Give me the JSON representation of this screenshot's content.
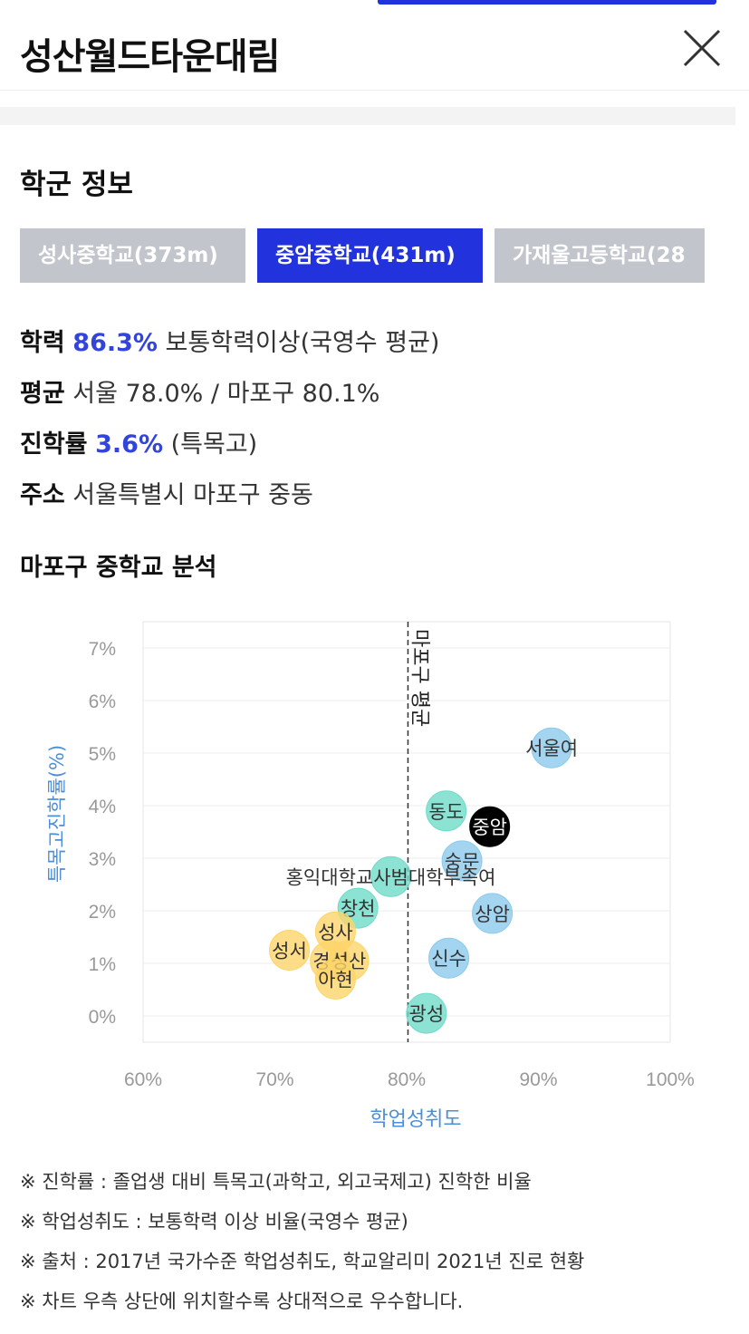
{
  "header": {
    "title": "성산월드타운대림",
    "close_icon": "close-icon"
  },
  "school_section": {
    "title": "학군 정보",
    "tabs": [
      {
        "label": "성사중학교(373m)",
        "active": false
      },
      {
        "label": "중암중학교(431m)",
        "active": true
      },
      {
        "label": "가재울고등학교(28",
        "active": false
      }
    ],
    "info": {
      "achievement_label": "학력",
      "achievement_value": "86.3%",
      "achievement_desc": "보통학력이상(국영수 평균)",
      "average_label": "평균",
      "average_value": "서울 78.0% / 마포구 80.1%",
      "advance_label": "진학률",
      "advance_value": "3.6%",
      "advance_desc": "(특목고)",
      "address_label": "주소",
      "address_value": "서울특별시 마포구 중동"
    }
  },
  "analysis": {
    "title": "마포구 중학교 분석"
  },
  "chart_data": {
    "type": "scatter",
    "xlabel": "학업성취도",
    "ylabel": "특목고진학률(%)",
    "xlim": [
      60,
      100
    ],
    "ylim": [
      -0.5,
      7.5
    ],
    "x_ticks": [
      "60%",
      "70%",
      "80%",
      "90%",
      "100%"
    ],
    "x_tick_values": [
      60,
      70,
      80,
      90,
      100
    ],
    "y_ticks": [
      "0%",
      "1%",
      "2%",
      "3%",
      "4%",
      "5%",
      "6%",
      "7%"
    ],
    "y_tick_values": [
      0,
      1,
      2,
      3,
      4,
      5,
      6,
      7
    ],
    "average_line": {
      "x": 80.1,
      "label": "마포구 평균"
    },
    "colors": {
      "yellow": "#fcd56a",
      "teal": "#6fdcc8",
      "blue": "#8ccaee",
      "black": "#000000"
    },
    "points": [
      {
        "name": "서울여",
        "x": 91.0,
        "y": 5.1,
        "color": "blue"
      },
      {
        "name": "동도",
        "x": 83.0,
        "y": 3.9,
        "color": "teal"
      },
      {
        "name": "중암",
        "x": 86.3,
        "y": 3.6,
        "color": "black"
      },
      {
        "name": "숭문",
        "x": 84.2,
        "y": 2.95,
        "color": "blue"
      },
      {
        "name": "홍익대학교사범대학부속여",
        "x": 78.8,
        "y": 2.65,
        "color": "teal"
      },
      {
        "name": "상암",
        "x": 86.5,
        "y": 1.95,
        "color": "blue"
      },
      {
        "name": "창천",
        "x": 76.3,
        "y": 2.05,
        "color": "teal"
      },
      {
        "name": "신수",
        "x": 83.2,
        "y": 1.1,
        "color": "blue"
      },
      {
        "name": "성사",
        "x": 74.6,
        "y": 1.6,
        "color": "yellow"
      },
      {
        "name": "성서",
        "x": 71.1,
        "y": 1.25,
        "color": "yellow"
      },
      {
        "name": "경성",
        "x": 74.2,
        "y": 1.05,
        "color": "yellow"
      },
      {
        "name": "성산",
        "x": 75.6,
        "y": 1.05,
        "color": "yellow"
      },
      {
        "name": "아현",
        "x": 74.6,
        "y": 0.7,
        "color": "yellow"
      },
      {
        "name": "광성",
        "x": 81.5,
        "y": 0.05,
        "color": "teal"
      }
    ]
  },
  "notes": [
    "※ 진학률 : 졸업생 대비 특목고(과학고, 외고국제고) 진학한 비율",
    "※ 학업성취도 : 보통학력 이상 비율(국영수 평균)",
    "※ 출처 : 2017년 국가수준 학업성취도, 학교알리미 2021년 진로 현황",
    "※ 차트 우측 상단에 위치할수록 상대적으로 우수합니다."
  ]
}
